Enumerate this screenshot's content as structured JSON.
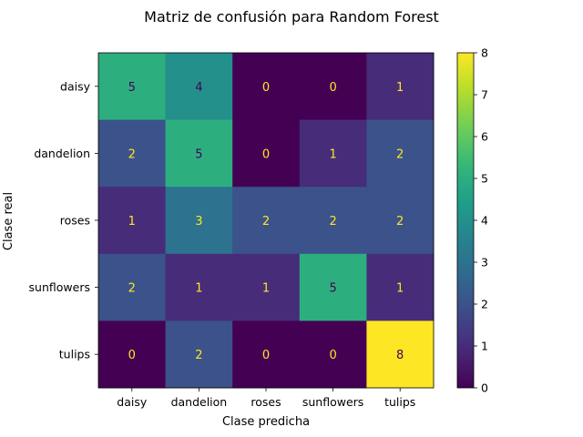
{
  "chart_data": {
    "type": "heatmap",
    "title": "Matriz de confusión para Random Forest",
    "xlabel": "Clase predicha",
    "ylabel": "Clase real",
    "x_categories": [
      "daisy",
      "dandelion",
      "roses",
      "sunflowers",
      "tulips"
    ],
    "y_categories": [
      "daisy",
      "dandelion",
      "roses",
      "sunflowers",
      "tulips"
    ],
    "values": [
      [
        5,
        4,
        0,
        0,
        1
      ],
      [
        2,
        5,
        0,
        1,
        2
      ],
      [
        1,
        3,
        2,
        2,
        2
      ],
      [
        2,
        1,
        1,
        5,
        1
      ],
      [
        0,
        2,
        0,
        0,
        8
      ]
    ],
    "colormap": "viridis",
    "colorbar": {
      "min": 0,
      "max": 8,
      "ticks": [
        0,
        1,
        2,
        3,
        4,
        5,
        6,
        7,
        8
      ]
    },
    "text_colors": {
      "dark_cell": "#fde725",
      "light_cell": "#440154"
    }
  }
}
